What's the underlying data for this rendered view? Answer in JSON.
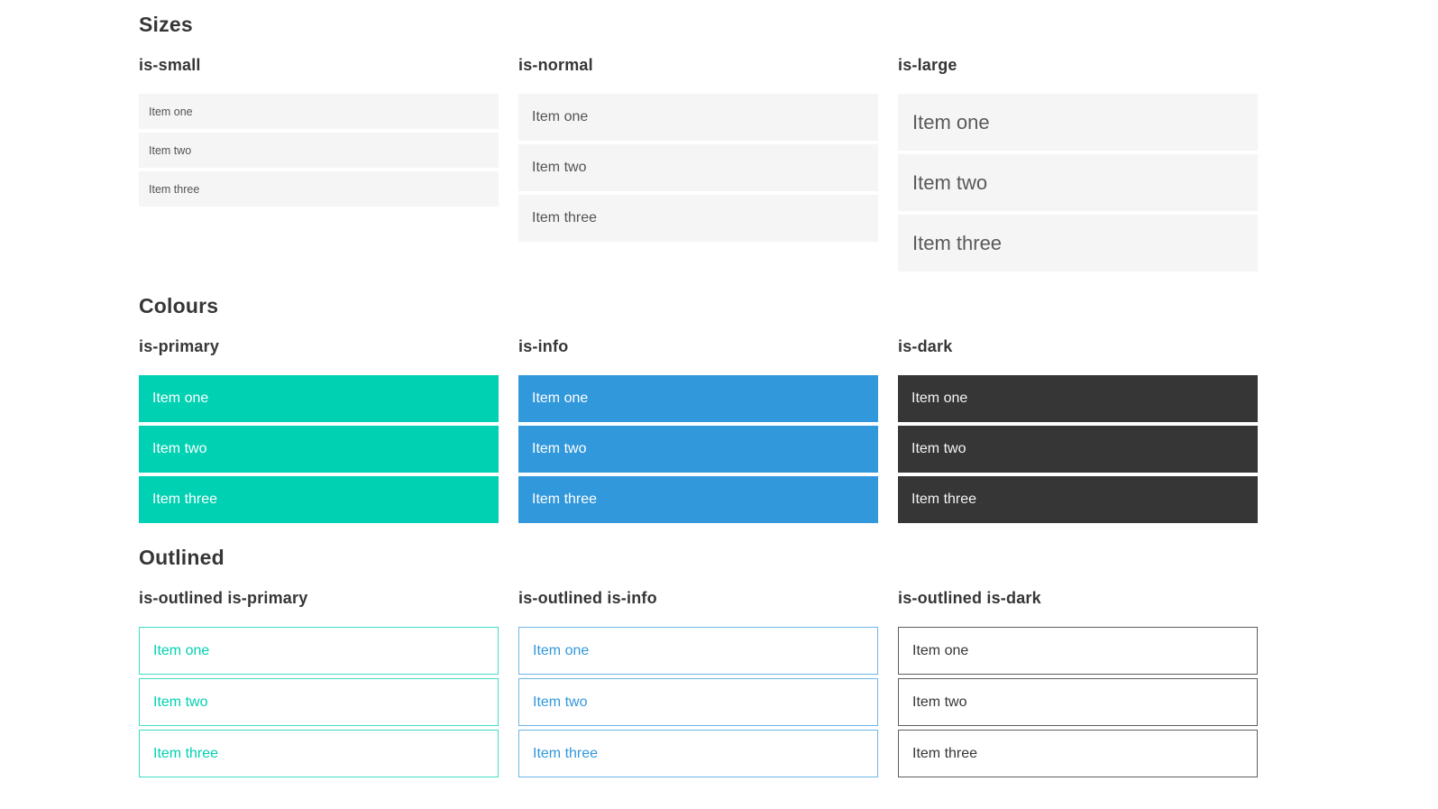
{
  "colors": {
    "primary": "#00d1b2",
    "info": "#3298dc",
    "dark": "#363636",
    "item_bg": "#f5f5f5",
    "item_text": "#545454",
    "heading_text": "#363636"
  },
  "sections": [
    {
      "title": "Sizes",
      "groups": [
        {
          "label": "is-small",
          "variant": "small",
          "items": [
            "Item one",
            "Item two",
            "Item three"
          ]
        },
        {
          "label": "is-normal",
          "variant": "normal",
          "items": [
            "Item one",
            "Item two",
            "Item three"
          ]
        },
        {
          "label": "is-large",
          "variant": "large",
          "items": [
            "Item one",
            "Item two",
            "Item three"
          ]
        }
      ]
    },
    {
      "title": "Colours",
      "groups": [
        {
          "label": "is-primary",
          "variant": "primary",
          "items": [
            "Item one",
            "Item two",
            "Item three"
          ]
        },
        {
          "label": "is-info",
          "variant": "info",
          "items": [
            "Item one",
            "Item two",
            "Item three"
          ]
        },
        {
          "label": "is-dark",
          "variant": "dark",
          "items": [
            "Item one",
            "Item two",
            "Item three"
          ]
        }
      ]
    },
    {
      "title": "Outlined",
      "groups": [
        {
          "label": "is-outlined is-primary",
          "variant": "outlined-primary",
          "items": [
            "Item one",
            "Item two",
            "Item three"
          ]
        },
        {
          "label": "is-outlined is-info",
          "variant": "outlined-info",
          "items": [
            "Item one",
            "Item two",
            "Item three"
          ]
        },
        {
          "label": "is-outlined is-dark",
          "variant": "outlined-dark",
          "items": [
            "Item one",
            "Item two",
            "Item three"
          ]
        }
      ]
    }
  ]
}
